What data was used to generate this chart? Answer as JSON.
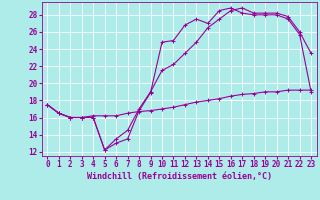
{
  "xlabel": "Windchill (Refroidissement éolien,°C)",
  "bg_color": "#aeecea",
  "grid_color": "#ffffff",
  "line_color": "#990099",
  "xlim": [
    -0.5,
    23.5
  ],
  "ylim": [
    11.5,
    29.5
  ],
  "xticks": [
    0,
    1,
    2,
    3,
    4,
    5,
    6,
    7,
    8,
    9,
    10,
    11,
    12,
    13,
    14,
    15,
    16,
    17,
    18,
    19,
    20,
    21,
    22,
    23
  ],
  "yticks": [
    12,
    14,
    16,
    18,
    20,
    22,
    24,
    26,
    28
  ],
  "curve1_x": [
    0,
    1,
    2,
    3,
    4,
    5,
    6,
    7,
    8,
    9,
    10,
    11,
    12,
    13,
    14,
    15,
    16,
    17,
    18,
    19,
    20,
    21,
    22,
    23
  ],
  "curve1_y": [
    17.5,
    16.5,
    16.0,
    16.0,
    16.0,
    12.2,
    13.0,
    13.5,
    16.8,
    18.9,
    24.8,
    25.0,
    26.8,
    27.5,
    27.0,
    28.5,
    28.8,
    28.2,
    28.0,
    28.0,
    28.0,
    27.5,
    25.7,
    19.0
  ],
  "curve2_x": [
    0,
    1,
    2,
    3,
    4,
    5,
    6,
    7,
    8,
    9,
    10,
    11,
    12,
    13,
    14,
    15,
    16,
    17,
    18,
    19,
    20,
    21,
    22,
    23
  ],
  "curve2_y": [
    17.5,
    16.5,
    16.0,
    16.0,
    16.0,
    12.2,
    13.5,
    14.5,
    17.0,
    19.0,
    21.5,
    22.2,
    23.5,
    24.8,
    26.5,
    27.5,
    28.5,
    28.8,
    28.2,
    28.2,
    28.2,
    27.8,
    26.0,
    23.5
  ],
  "curve3_x": [
    0,
    1,
    2,
    3,
    4,
    5,
    6,
    7,
    8,
    9,
    10,
    11,
    12,
    13,
    14,
    15,
    16,
    17,
    18,
    19,
    20,
    21,
    22,
    23
  ],
  "curve3_y": [
    17.5,
    16.5,
    16.0,
    16.0,
    16.2,
    16.2,
    16.2,
    16.5,
    16.7,
    16.8,
    17.0,
    17.2,
    17.5,
    17.8,
    18.0,
    18.2,
    18.5,
    18.7,
    18.8,
    19.0,
    19.0,
    19.2,
    19.2,
    19.2
  ]
}
